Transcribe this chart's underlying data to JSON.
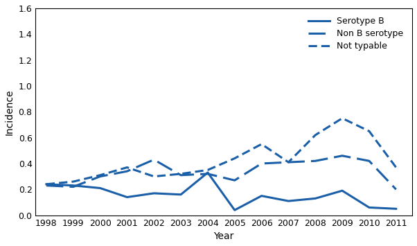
{
  "years": [
    1998,
    1999,
    2000,
    2001,
    2002,
    2003,
    2004,
    2005,
    2006,
    2007,
    2008,
    2009,
    2010,
    2011
  ],
  "serotype_b": [
    0.24,
    0.23,
    0.21,
    0.14,
    0.17,
    0.16,
    0.33,
    0.04,
    0.15,
    0.11,
    0.13,
    0.19,
    0.06,
    0.05
  ],
  "non_b": [
    0.23,
    0.22,
    0.3,
    0.34,
    0.43,
    0.31,
    0.32,
    0.27,
    0.4,
    0.41,
    0.42,
    0.46,
    0.42,
    0.2
  ],
  "not_typable": [
    0.24,
    0.26,
    0.31,
    0.37,
    0.3,
    0.32,
    0.35,
    0.44,
    0.55,
    0.41,
    0.62,
    0.75,
    0.65,
    0.37
  ],
  "line_color": "#1a5fa8",
  "ylabel": "Incidence",
  "xlabel": "Year",
  "ylim": [
    0.0,
    1.6
  ],
  "yticks": [
    0.0,
    0.2,
    0.4,
    0.6,
    0.8,
    1.0,
    1.2,
    1.4,
    1.6
  ],
  "legend_labels": [
    "Serotype B",
    "Non B serotype",
    "Not typable"
  ],
  "figsize": [
    6.02,
    3.55
  ],
  "dpi": 100
}
